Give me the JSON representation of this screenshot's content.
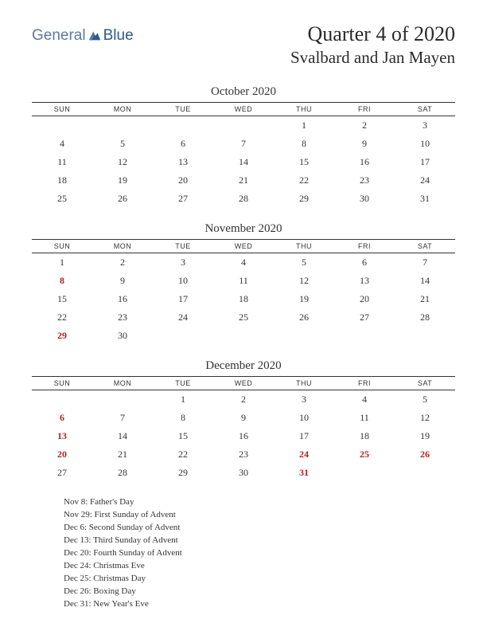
{
  "logo": {
    "text1": "General",
    "text2": "Blue"
  },
  "title": {
    "main": "Quarter 4 of 2020",
    "sub": "Svalbard and Jan Mayen"
  },
  "dayHeaders": [
    "SUN",
    "MON",
    "TUE",
    "WED",
    "THU",
    "FRI",
    "SAT"
  ],
  "months": [
    {
      "name": "October 2020",
      "weeks": [
        [
          null,
          null,
          null,
          null,
          {
            "d": 1
          },
          {
            "d": 2
          },
          {
            "d": 3
          }
        ],
        [
          {
            "d": 4
          },
          {
            "d": 5
          },
          {
            "d": 6
          },
          {
            "d": 7
          },
          {
            "d": 8
          },
          {
            "d": 9
          },
          {
            "d": 10
          }
        ],
        [
          {
            "d": 11
          },
          {
            "d": 12
          },
          {
            "d": 13
          },
          {
            "d": 14
          },
          {
            "d": 15
          },
          {
            "d": 16
          },
          {
            "d": 17
          }
        ],
        [
          {
            "d": 18
          },
          {
            "d": 19
          },
          {
            "d": 20
          },
          {
            "d": 21
          },
          {
            "d": 22
          },
          {
            "d": 23
          },
          {
            "d": 24
          }
        ],
        [
          {
            "d": 25
          },
          {
            "d": 26
          },
          {
            "d": 27
          },
          {
            "d": 28
          },
          {
            "d": 29
          },
          {
            "d": 30
          },
          {
            "d": 31
          }
        ]
      ]
    },
    {
      "name": "November 2020",
      "weeks": [
        [
          {
            "d": 1
          },
          {
            "d": 2
          },
          {
            "d": 3
          },
          {
            "d": 4
          },
          {
            "d": 5
          },
          {
            "d": 6
          },
          {
            "d": 7
          }
        ],
        [
          {
            "d": 8,
            "h": true
          },
          {
            "d": 9
          },
          {
            "d": 10
          },
          {
            "d": 11
          },
          {
            "d": 12
          },
          {
            "d": 13
          },
          {
            "d": 14
          }
        ],
        [
          {
            "d": 15
          },
          {
            "d": 16
          },
          {
            "d": 17
          },
          {
            "d": 18
          },
          {
            "d": 19
          },
          {
            "d": 20
          },
          {
            "d": 21
          }
        ],
        [
          {
            "d": 22
          },
          {
            "d": 23
          },
          {
            "d": 24
          },
          {
            "d": 25
          },
          {
            "d": 26
          },
          {
            "d": 27
          },
          {
            "d": 28
          }
        ],
        [
          {
            "d": 29,
            "h": true
          },
          {
            "d": 30
          },
          null,
          null,
          null,
          null,
          null
        ]
      ]
    },
    {
      "name": "December 2020",
      "weeks": [
        [
          null,
          null,
          {
            "d": 1
          },
          {
            "d": 2
          },
          {
            "d": 3
          },
          {
            "d": 4
          },
          {
            "d": 5
          }
        ],
        [
          {
            "d": 6,
            "h": true
          },
          {
            "d": 7
          },
          {
            "d": 8
          },
          {
            "d": 9
          },
          {
            "d": 10
          },
          {
            "d": 11
          },
          {
            "d": 12
          }
        ],
        [
          {
            "d": 13,
            "h": true
          },
          {
            "d": 14
          },
          {
            "d": 15
          },
          {
            "d": 16
          },
          {
            "d": 17
          },
          {
            "d": 18
          },
          {
            "d": 19
          }
        ],
        [
          {
            "d": 20,
            "h": true
          },
          {
            "d": 21
          },
          {
            "d": 22
          },
          {
            "d": 23
          },
          {
            "d": 24,
            "h": true
          },
          {
            "d": 25,
            "h": true
          },
          {
            "d": 26,
            "h": true
          }
        ],
        [
          {
            "d": 27
          },
          {
            "d": 28
          },
          {
            "d": 29
          },
          {
            "d": 30
          },
          {
            "d": 31,
            "h": true
          },
          null,
          null
        ]
      ]
    }
  ],
  "holidays": [
    "Nov 8: Father's Day",
    "Nov 29: First Sunday of Advent",
    "Dec 6: Second Sunday of Advent",
    "Dec 13: Third Sunday of Advent",
    "Dec 20: Fourth Sunday of Advent",
    "Dec 24: Christmas Eve",
    "Dec 25: Christmas Day",
    "Dec 26: Boxing Day",
    "Dec 31: New Year's Eve"
  ],
  "colors": {
    "text": "#333333",
    "holiday": "#b82020",
    "logoLight": "#5b7a99",
    "logoDark": "#2b5b8c"
  }
}
